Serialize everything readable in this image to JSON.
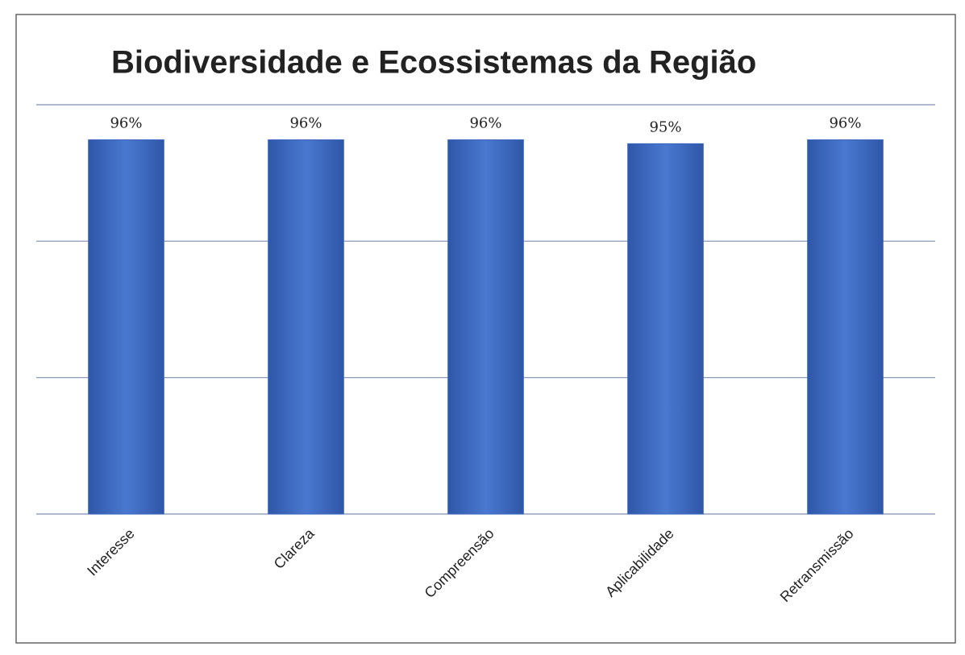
{
  "chart_data": {
    "type": "bar",
    "title": "Biodiversidade e Ecossistemas da Região",
    "categories": [
      "Interesse",
      "Clareza",
      "Compreensão",
      "Aplicabilidade",
      "Retransmissão"
    ],
    "values": [
      96,
      96,
      96,
      95,
      96
    ],
    "value_labels": [
      "96%",
      "96%",
      "96%",
      "95%",
      "96%"
    ],
    "color": "#3a66c0",
    "ylim": [
      0,
      105
    ],
    "yticks": [
      0,
      35,
      70,
      105
    ],
    "grid": true
  }
}
